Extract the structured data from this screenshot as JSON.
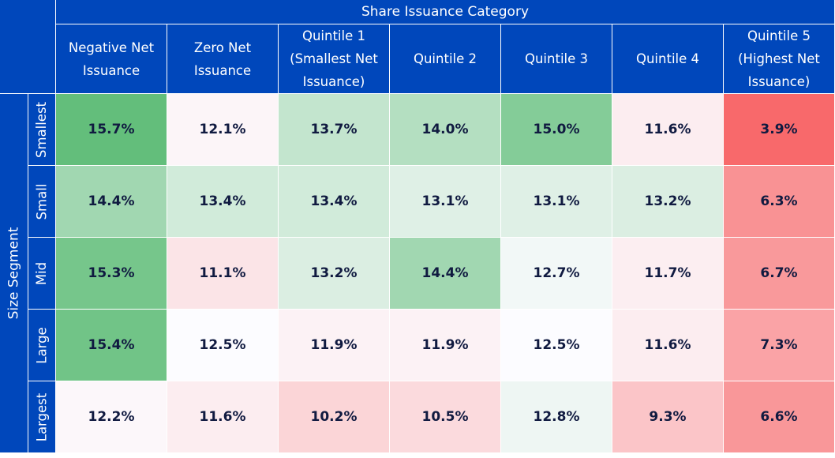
{
  "chart_data": {
    "type": "heatmap",
    "xlabel": "Share Issuance Category",
    "ylabel": "Size Segment",
    "columns": [
      "Negative Net\nIssuance",
      "Zero Net\nIssuance",
      "Quintile 1\n(Smallest Net\nIssuance)",
      "Quintile 2",
      "Quintile 3",
      "Quintile 4",
      "Quintile 5\n(Highest Net\nIssuance)"
    ],
    "rows": [
      "Smallest",
      "Small",
      "Mid",
      "Large",
      "Largest"
    ],
    "values": [
      [
        15.7,
        12.1,
        13.7,
        14.0,
        15.0,
        11.6,
        3.9
      ],
      [
        14.4,
        13.4,
        13.4,
        13.1,
        13.1,
        13.2,
        6.3
      ],
      [
        15.3,
        11.1,
        13.2,
        14.4,
        12.7,
        11.7,
        6.7
      ],
      [
        15.4,
        12.5,
        11.9,
        11.9,
        12.5,
        11.6,
        7.3
      ],
      [
        12.2,
        11.6,
        10.2,
        10.5,
        12.8,
        9.3,
        6.6
      ]
    ],
    "value_format": "%",
    "colors": {
      "low": "#F8696B",
      "mid": "#FCFCFF",
      "high": "#63BE7B",
      "header": "#0047BB"
    }
  }
}
